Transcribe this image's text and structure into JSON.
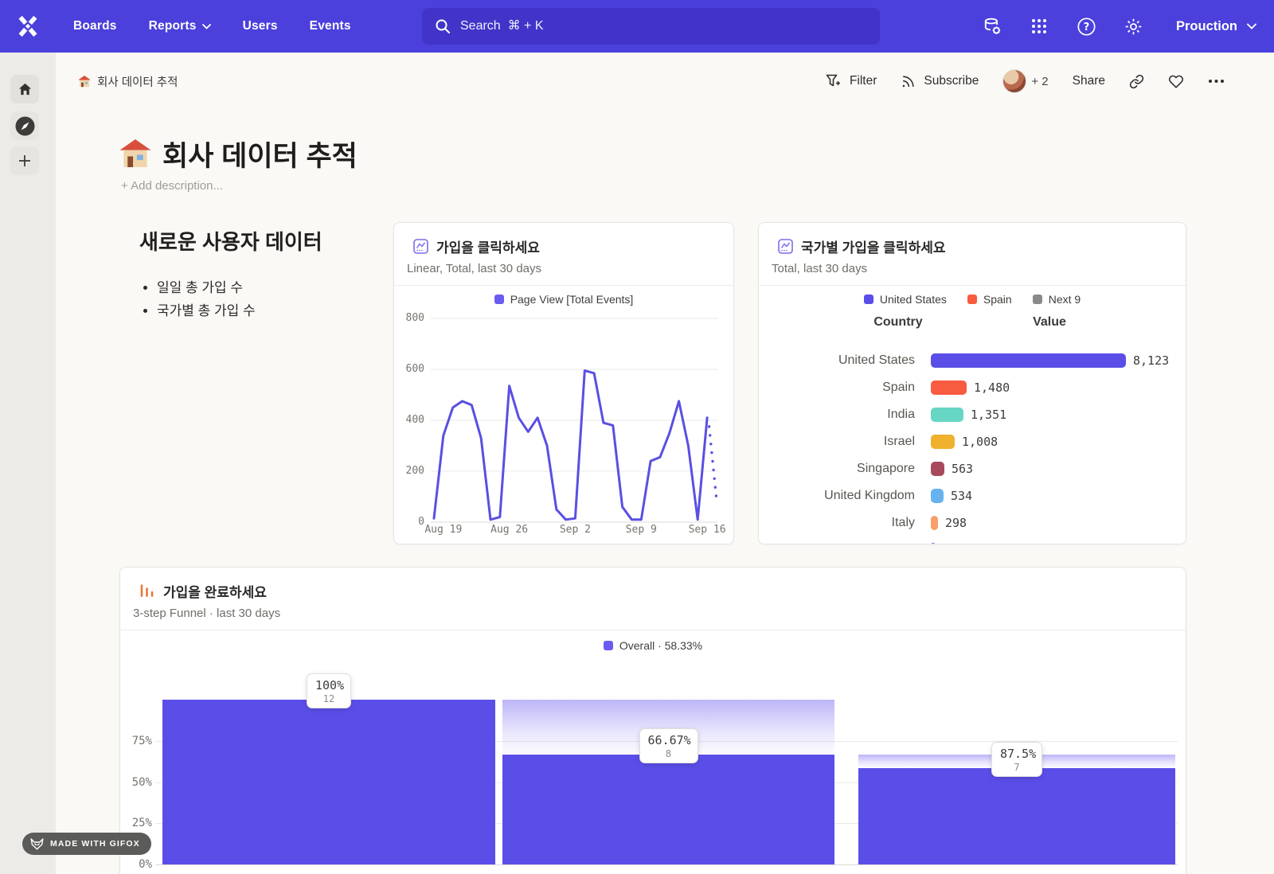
{
  "topnav": {
    "items": [
      "Boards",
      "Reports",
      "Users",
      "Events"
    ],
    "search_placeholder": "Search  ⌘ + K",
    "project": "Prouction"
  },
  "toolbar": {
    "breadcrumb_emoji": "🏠",
    "breadcrumb": "회사 데이터 추적",
    "filter": "Filter",
    "subscribe": "Subscribe",
    "avatar_more": "+ 2",
    "share": "Share"
  },
  "page": {
    "title_emoji": "🏠",
    "title": "회사 데이터 추적",
    "add_description": "+ Add description..."
  },
  "text_block": {
    "heading": "새로운 사용자 데이터",
    "bullets": [
      "일일 총 가입 수",
      "국가별 총 가입 수"
    ]
  },
  "line_card": {
    "title": "가입을 클릭하세요",
    "subtitle": "Linear, Total, last 30 days",
    "legend_label": "Page View [Total Events]",
    "chart_data": {
      "type": "line",
      "series_name": "Page View [Total Events]",
      "color": "#5A4FE3",
      "ylim": [
        0,
        800
      ],
      "y_ticks": [
        800,
        600,
        400,
        200,
        0
      ],
      "x_ticks": [
        "Aug 19",
        "Aug 26",
        "Sep 2",
        "Sep 9",
        "Sep 16"
      ],
      "x_tick_idx": [
        1,
        8,
        15,
        22,
        29
      ],
      "values": [
        15,
        340,
        450,
        475,
        460,
        330,
        10,
        20,
        535,
        410,
        355,
        410,
        300,
        50,
        10,
        15,
        595,
        585,
        390,
        380,
        60,
        10,
        10,
        240,
        255,
        350,
        475,
        300,
        10,
        410
      ],
      "dotted_tail": [
        375,
        341,
        307,
        273,
        239,
        205,
        171,
        137,
        103
      ]
    }
  },
  "country_card": {
    "title": "국가별 가입을 클릭하세요",
    "subtitle": "Total, last 30 days",
    "legend": [
      {
        "label": "United States",
        "color": "#5B4EE8"
      },
      {
        "label": "Spain",
        "color": "#F75C40"
      },
      {
        "label": "Next 9",
        "color": "#8A8A89"
      }
    ],
    "columns": {
      "country": "Country",
      "value": "Value"
    },
    "chart_data": {
      "type": "bar",
      "rows": [
        {
          "country": "United States",
          "value": "8,123",
          "num": 8123,
          "color": "#5B4EE8"
        },
        {
          "country": "Spain",
          "value": "1,480",
          "num": 1480,
          "color": "#F75C40"
        },
        {
          "country": "India",
          "value": "1,351",
          "num": 1351,
          "color": "#67D6C4"
        },
        {
          "country": "Israel",
          "value": "1,008",
          "num": 1008,
          "color": "#EFB12E"
        },
        {
          "country": "Singapore",
          "value": "563",
          "num": 563,
          "color": "#A84A5E"
        },
        {
          "country": "United Kingdom",
          "value": "534",
          "num": 534,
          "color": "#66B3EF"
        },
        {
          "country": "Italy",
          "value": "298",
          "num": 298,
          "color": "#F9A06A"
        }
      ],
      "clipped_row_color": "#4B79E0"
    }
  },
  "funnel_card": {
    "title": "가입을 완료하세요",
    "subtitle": "3-step Funnel · last 30 days",
    "legend_label": "Overall · 58.33%",
    "chart_data": {
      "type": "funnel-bar",
      "bar_color": "#5B4EE8",
      "y_ticks": [
        "75%",
        "50%",
        "25%",
        "0%"
      ],
      "y_tick_values": [
        75,
        50,
        25,
        0
      ],
      "steps": [
        {
          "pct": "100%",
          "count": "12",
          "overall": 100,
          "prev": 100
        },
        {
          "pct": "66.67%",
          "count": "8",
          "overall": 66.67,
          "prev": 100
        },
        {
          "pct": "87.5%",
          "count": "7",
          "overall": 58.33,
          "prev": 66.67
        }
      ]
    }
  },
  "badge": {
    "label": "MADE WITH GIFOX"
  }
}
